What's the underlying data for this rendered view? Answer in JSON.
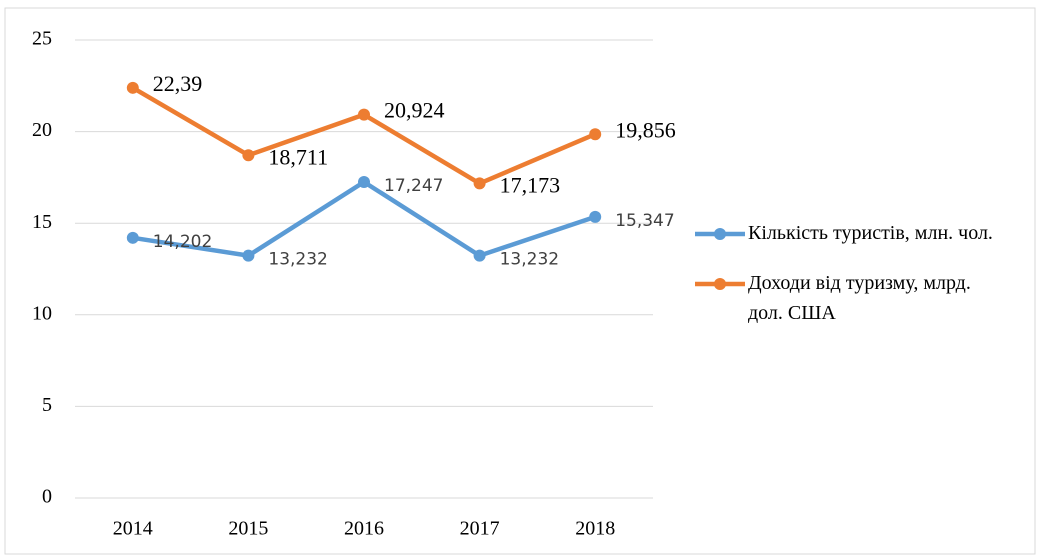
{
  "chart_data": {
    "type": "line",
    "categories": [
      "2014",
      "2015",
      "2016",
      "2017",
      "2018"
    ],
    "series": [
      {
        "name": "Кількість туристів, млн. чол.",
        "color": "#5b9bd5",
        "values": [
          14.202,
          13.232,
          17.247,
          13.232,
          15.347
        ],
        "value_labels": [
          "14,202",
          "13,232",
          "17,247",
          "13,232",
          "15,347"
        ]
      },
      {
        "name": "Доходи від туризму, млрд. дол. США",
        "color": "#ed7d31",
        "values": [
          22.39,
          18.711,
          20.924,
          17.173,
          19.856
        ],
        "value_labels": [
          "22,39",
          "18,711",
          "20,924",
          "17,173",
          "19,856"
        ]
      }
    ],
    "ylim": [
      0,
      25
    ],
    "yticks": [
      0,
      5,
      10,
      15,
      20,
      25
    ],
    "grid": true,
    "legend": "right"
  }
}
